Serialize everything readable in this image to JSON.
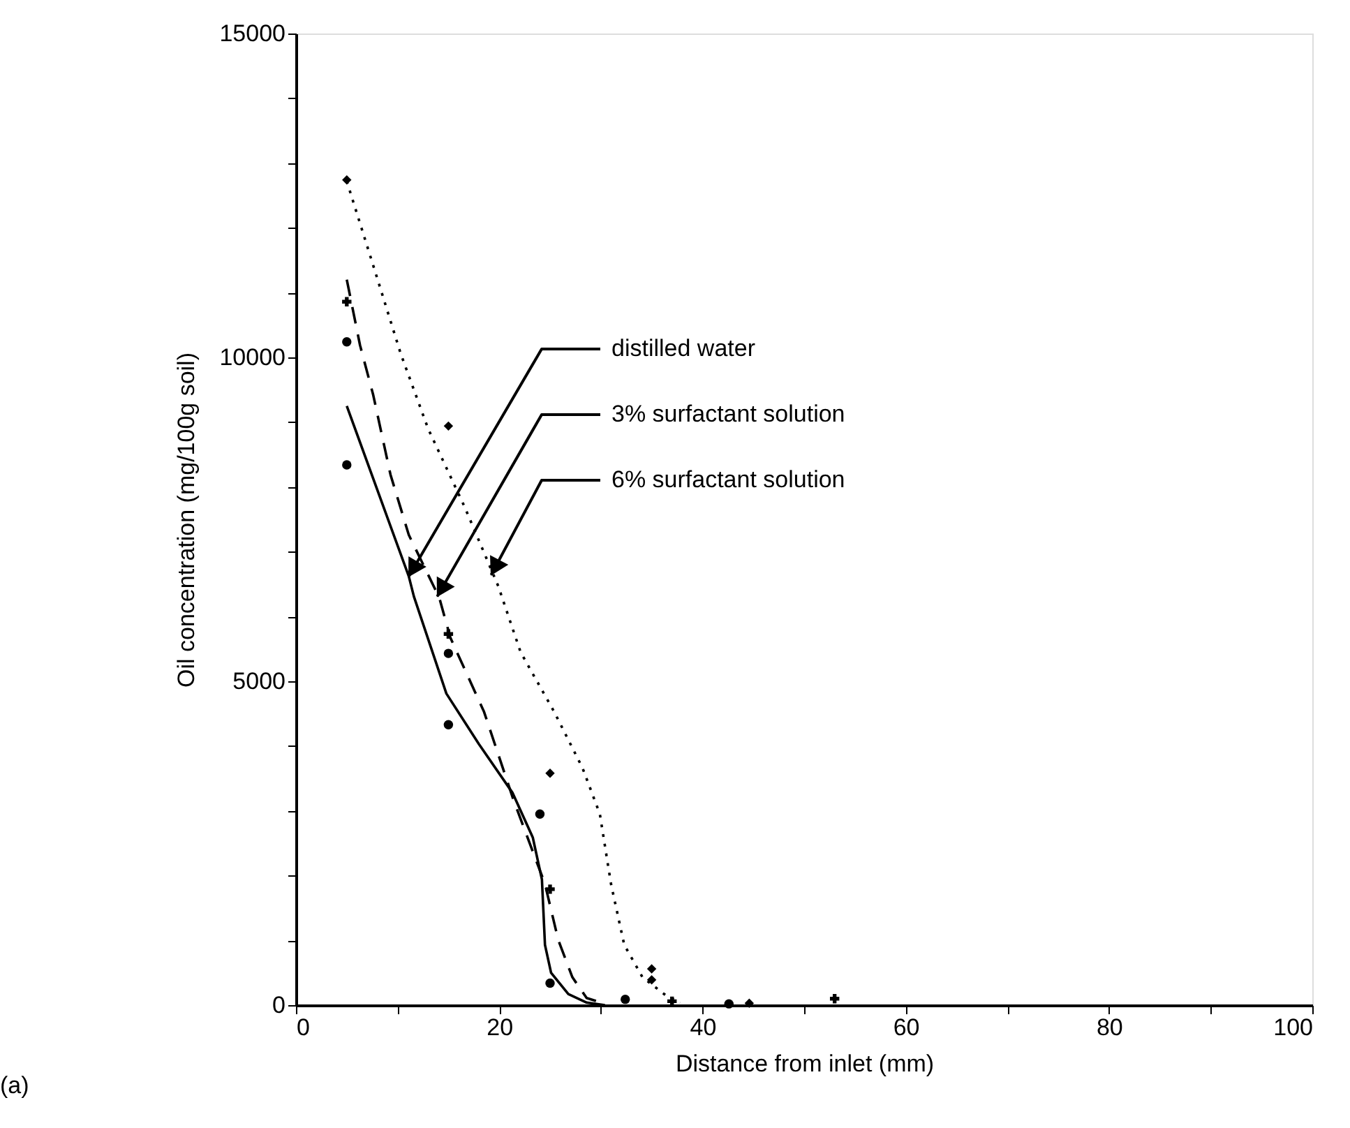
{
  "chart_data": {
    "type": "line",
    "xlabel": "Distance from inlet (mm)",
    "ylabel": "Oil concentration (mg/100g soil)",
    "xlim": [
      0,
      100
    ],
    "ylim": [
      0,
      15000
    ],
    "xticks": [
      0,
      {
        "value": 10,
        "label": null
      },
      20,
      {
        "value": 30,
        "label": null
      },
      40,
      {
        "value": 50,
        "label": null
      },
      60,
      {
        "value": 70,
        "label": null
      },
      80,
      {
        "value": 90,
        "label": null
      },
      100
    ],
    "yticks": [
      0,
      {
        "value": 1000,
        "label": null
      },
      {
        "value": 2000,
        "label": null
      },
      {
        "value": 3000,
        "label": null
      },
      {
        "value": 4000,
        "label": null
      },
      5000,
      {
        "value": 6000,
        "label": null
      },
      {
        "value": 7000,
        "label": null
      },
      {
        "value": 8000,
        "label": null
      },
      {
        "value": 9000,
        "label": null
      },
      10000,
      {
        "value": 11000,
        "label": null
      },
      {
        "value": 12000,
        "label": null
      },
      {
        "value": 13000,
        "label": null
      },
      {
        "value": 14000,
        "label": null
      },
      15000
    ],
    "grid": false,
    "series": [
      {
        "line_style": "solid",
        "color": "#000000",
        "x": [
          5,
          11.1,
          11.6,
          14.8,
          18.0,
          21.3,
          23.3,
          24.2,
          24.5,
          25.1,
          26.8,
          28.6,
          30.4
        ],
        "values": [
          9250,
          6620,
          6310,
          4810,
          4030,
          3280,
          2590,
          1940,
          930,
          500,
          170,
          40,
          0
        ]
      },
      {
        "line_style": "dashed",
        "color": "#000000",
        "x": [
          5,
          6.3,
          7.6,
          9.3,
          11.1,
          14.1,
          15.2,
          18.5,
          21.4,
          24.5,
          25.8,
          27.2,
          28.6,
          30.4
        ],
        "values": [
          11200,
          10190,
          9420,
          8190,
          7260,
          6290,
          5670,
          4530,
          3170,
          1870,
          1010,
          430,
          110,
          20
        ]
      },
      {
        "line_style": "dotted",
        "color": "#000000",
        "x": [
          5,
          7.6,
          10.3,
          13.0,
          16.6,
          19.9,
          22.1,
          25.4,
          28.2,
          29.9,
          31.0,
          32.3,
          34.1,
          36.4,
          37.8
        ],
        "values": [
          12720,
          11420,
          10060,
          8900,
          7690,
          6470,
          5450,
          4530,
          3660,
          2950,
          1870,
          930,
          430,
          150,
          40
        ]
      },
      {
        "type": "scatter",
        "marker": "circle",
        "color": "#000000",
        "x": [
          5,
          5,
          15,
          15,
          24,
          25,
          32.4,
          42.6
        ],
        "values": [
          10240,
          8340,
          5430,
          4330,
          2950,
          340,
          90,
          20
        ]
      },
      {
        "type": "scatter",
        "marker": "cross",
        "color": "#000000",
        "x": [
          5,
          15,
          25,
          37,
          53
        ],
        "values": [
          10860,
          5730,
          1790,
          60,
          100
        ]
      },
      {
        "type": "scatter",
        "marker": "diamond",
        "color": "#000000",
        "x": [
          5,
          15,
          25,
          35,
          35,
          44.6
        ],
        "values": [
          12740,
          8940,
          3580,
          560,
          390,
          30
        ]
      }
    ],
    "annotations": [
      {
        "text": "distilled water",
        "x": 11.1,
        "y": 6620
      },
      {
        "text": "3% surfactant solution",
        "x": 13.9,
        "y": 6310
      },
      {
        "text": "6% surfactant solution",
        "x": 19.2,
        "y": 6640
      },
      "(a)"
    ]
  }
}
